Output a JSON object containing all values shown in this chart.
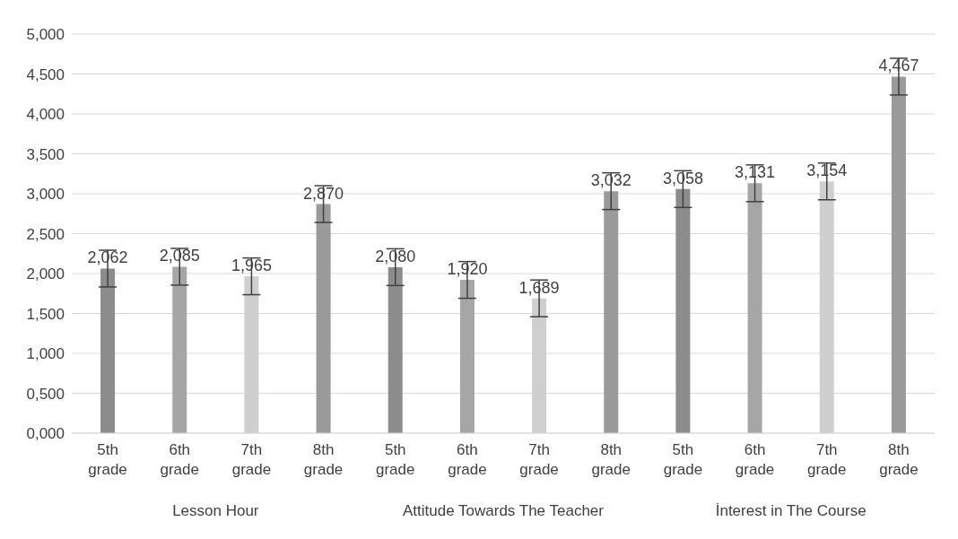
{
  "chart_data": {
    "type": "bar",
    "categories": [
      "5th grade",
      "6th grade",
      "7th grade",
      "8th grade",
      "5th grade",
      "6th grade",
      "7th grade",
      "8th grade",
      "5th grade",
      "6th grade",
      "7th grade",
      "8th grade"
    ],
    "values": [
      2.062,
      2.085,
      1.965,
      2.87,
      2.08,
      1.92,
      1.689,
      3.032,
      3.058,
      3.131,
      3.154,
      4.467
    ],
    "value_labels": [
      "2,062",
      "2,085",
      "1,965",
      "2,870",
      "2,080",
      "1,920",
      "1,689",
      "3,032",
      "3,058",
      "3,131",
      "3,154",
      "4,467"
    ],
    "errors": [
      0.23,
      0.23,
      0.23,
      0.23,
      0.23,
      0.23,
      0.23,
      0.23,
      0.23,
      0.23,
      0.23,
      0.23
    ],
    "colors": [
      "#8c8c8c",
      "#a6a6a6",
      "#cfcfcf",
      "#9a9a9a",
      "#8c8c8c",
      "#a6a6a6",
      "#cfcfcf",
      "#9a9a9a",
      "#8c8c8c",
      "#a6a6a6",
      "#cfcfcf",
      "#9a9a9a"
    ],
    "annotations": [
      "Lesson Hour",
      "Attitude Towards The Teacher",
      "İnterest in The Course"
    ],
    "ylim": [
      0,
      5
    ],
    "yticks": [
      {
        "value": 0,
        "label": "0,000"
      },
      {
        "value": 0.5,
        "label": "0,500"
      },
      {
        "value": 1,
        "label": "1,000"
      },
      {
        "value": 1.5,
        "label": "1,500"
      },
      {
        "value": 2,
        "label": "2,000"
      },
      {
        "value": 2.5,
        "label": "2,500"
      },
      {
        "value": 3,
        "label": "3,000"
      },
      {
        "value": 3.5,
        "label": "3,500"
      },
      {
        "value": 4,
        "label": "4,000"
      },
      {
        "value": 4.5,
        "label": "4,500"
      },
      {
        "value": 5,
        "label": "5,000"
      }
    ],
    "grid": "y",
    "legend": false
  }
}
